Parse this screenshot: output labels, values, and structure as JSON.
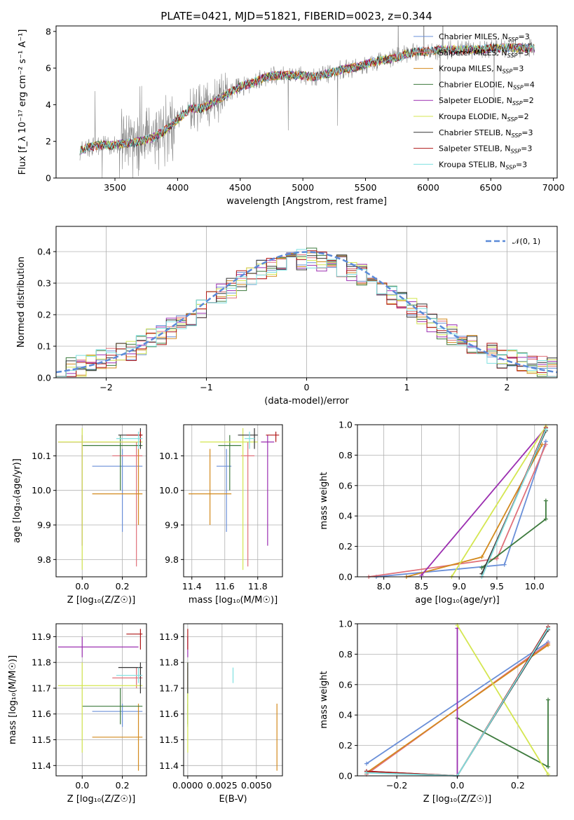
{
  "figure_title": "PLATE=0421, MJD=51821, FIBERID=0023, z=0.344",
  "colors": {
    "chabrier_miles": "#6a8fd8",
    "salpeter_miles": "#e0707a",
    "kroupa_miles": "#d38a1e",
    "chabrier_elodie": "#3d7a3d",
    "salpeter_elodie": "#9b2eb0",
    "kroupa_elodie": "#d4e650",
    "chabrier_stelib": "#333333",
    "salpeter_stelib": "#b01818",
    "kroupa_stelib": "#7fe0e0",
    "data_line": "#888888",
    "gaussian": "#5b8ad8"
  },
  "chart_data": [
    {
      "id": "spectrum",
      "type": "line",
      "xlabel": "wavelength [Angstrom, rest frame]",
      "ylabel": "Flux [f_λ 10⁻¹⁷ erg cm⁻² s⁻¹ A⁻¹]",
      "xlim": [
        3030,
        7030
      ],
      "ylim": [
        0,
        8.3
      ],
      "xticks": [
        "3500",
        "4000",
        "4500",
        "5000",
        "5500",
        "6000",
        "6500",
        "7000"
      ],
      "yticks": [
        "0",
        "2",
        "4",
        "6",
        "8"
      ],
      "legend_position": "upper-right",
      "legend": [
        {
          "lib": "Chabrier MILES",
          "n": "3"
        },
        {
          "lib": "Salpeter MILES",
          "n": "3"
        },
        {
          "lib": "Kroupa MILES",
          "n": "3"
        },
        {
          "lib": "Chabrier ELODIE",
          "n": "4"
        },
        {
          "lib": "Salpeter ELODIE",
          "n": "2"
        },
        {
          "lib": "Kroupa ELODIE",
          "n": "2"
        },
        {
          "lib": "Chabrier STELIB",
          "n": "3"
        },
        {
          "lib": "Salpeter STELIB",
          "n": "3"
        },
        {
          "lib": "Kroupa STELIB",
          "n": "3"
        }
      ],
      "continuum": {
        "x": [
          3220,
          3260,
          3300,
          3400,
          3500,
          3600,
          3700,
          3800,
          3900,
          4000,
          4100,
          4200,
          4300,
          4400,
          4500,
          4600,
          4700,
          4800,
          4900,
          5000,
          5100,
          5200,
          5300,
          5400,
          5500,
          5600,
          5700,
          5800,
          5900,
          6000,
          6100,
          6200,
          6300,
          6400,
          6500,
          6600,
          6700,
          6800,
          6850
        ],
        "y": [
          1.5,
          1.6,
          1.7,
          1.8,
          1.8,
          1.9,
          2.0,
          2.2,
          2.6,
          3.2,
          3.8,
          3.8,
          4.2,
          4.6,
          5.0,
          5.2,
          5.5,
          5.6,
          5.6,
          5.6,
          5.5,
          5.7,
          5.9,
          6.0,
          6.2,
          6.4,
          6.5,
          6.7,
          6.9,
          6.9,
          7.0,
          7.0,
          7.0,
          7.0,
          7.1,
          7.1,
          7.1,
          7.1,
          7.1
        ]
      }
    },
    {
      "id": "residuals",
      "type": "line",
      "xlabel": "(data-model)/error",
      "ylabel": "Normed distribution",
      "xlim": [
        -2.5,
        2.5
      ],
      "ylim": [
        0,
        0.48
      ],
      "xticks": [
        "−2",
        "−1",
        "0",
        "1",
        "2"
      ],
      "yticks": [
        "0.0",
        "0.1",
        "0.2",
        "0.3",
        "0.4"
      ],
      "legend": [
        "𝒩(0, 1)"
      ],
      "legend_position": "upper-right",
      "gaussian": {
        "mean": 0,
        "sigma": 1
      },
      "grid": true
    },
    {
      "id": "age_vs_Z",
      "type": "scatter",
      "xlabel": "Z [log₁₀(Z/Z☉)]",
      "ylabel": "age  [log₁₀(age/yr)]",
      "xlim": [
        -0.13,
        0.32
      ],
      "ylim": [
        9.75,
        10.19
      ],
      "xticks": [
        "0.0",
        "0.2"
      ],
      "yticks": [
        "9.8",
        "9.9",
        "10.0",
        "10.1"
      ],
      "grid": true
    },
    {
      "id": "age_vs_mass",
      "type": "scatter",
      "xlabel": "mass [log₁₀(M/M☉)]",
      "xlim": [
        11.35,
        11.95
      ],
      "ylim": [
        9.75,
        10.19
      ],
      "xticks": [
        "11.4",
        "11.6",
        "11.8"
      ],
      "yticks": [
        "9.8",
        "9.9",
        "10.0",
        "10.1"
      ],
      "grid": true
    },
    {
      "id": "mass_weight_vs_age",
      "type": "line",
      "xlabel": "age  [log₁₀(age/yr)]",
      "ylabel": "mass weight",
      "xlim": [
        7.65,
        10.3
      ],
      "ylim": [
        0,
        1.0
      ],
      "xticks": [
        "8.0",
        "8.5",
        "9.0",
        "9.5",
        "10.0"
      ],
      "yticks": [
        "0.0",
        "0.2",
        "0.4",
        "0.6",
        "0.8",
        "1.0"
      ],
      "grid": true
    },
    {
      "id": "mass_vs_Z",
      "type": "scatter",
      "xlabel": "Z [log₁₀(Z/Z☉)]",
      "ylabel": "mass [log₁₀(M/M☉)]",
      "xlim": [
        -0.13,
        0.32
      ],
      "ylim": [
        11.36,
        11.95
      ],
      "xticks": [
        "0.0",
        "0.2"
      ],
      "yticks": [
        "11.4",
        "11.5",
        "11.6",
        "11.7",
        "11.8",
        "11.9"
      ],
      "grid": true
    },
    {
      "id": "mass_vs_ebv",
      "type": "scatter",
      "xlabel": "E(B-V)",
      "xlim": [
        -0.0003,
        0.0069
      ],
      "ylim": [
        11.36,
        11.95
      ],
      "xticks": [
        "0.0000",
        "0.0025",
        "0.0050"
      ],
      "yticks": [
        "11.4",
        "11.5",
        "11.6",
        "11.7",
        "11.8",
        "11.9"
      ],
      "grid": true
    },
    {
      "id": "mass_weight_vs_Z",
      "type": "line",
      "xlabel": "Z [log₁₀(Z/Z☉)]",
      "ylabel": "mass weight",
      "xlim": [
        -0.33,
        0.33
      ],
      "ylim": [
        0,
        1.0
      ],
      "xticks": [
        "−0.2",
        "0.0",
        "0.2"
      ],
      "yticks": [
        "0.0",
        "0.2",
        "0.4",
        "0.6",
        "0.8",
        "1.0"
      ],
      "grid": true
    }
  ],
  "fits": [
    {
      "key": "chabrier_miles",
      "Z": 0.2,
      "Z_lo": 0.05,
      "Z_hi": 0.3,
      "age": 10.07,
      "age_lo": 9.88,
      "age_hi": 10.12,
      "mass": 11.61,
      "mass_lo": 11.55,
      "mass_hi": 11.64,
      "ebv": 0.0,
      "age_w": [
        [
          7.9,
          0.0
        ],
        [
          9.6,
          0.08
        ],
        [
          10.15,
          0.89
        ]
      ],
      "Z_w": [
        [
          -0.3,
          0.08
        ],
        [
          0.3,
          0.88
        ]
      ]
    },
    {
      "key": "salpeter_miles",
      "Z": 0.27,
      "Z_lo": 0.15,
      "Z_hi": 0.3,
      "age": 10.1,
      "age_lo": 9.78,
      "age_hi": 10.14,
      "mass": 11.74,
      "mass_lo": 11.7,
      "mass_hi": 11.78,
      "ebv": 0.0,
      "age_w": [
        [
          7.8,
          0.0
        ],
        [
          9.5,
          0.12
        ],
        [
          10.15,
          0.87
        ]
      ],
      "Z_w": [
        [
          -0.3,
          0.01
        ],
        [
          0.3,
          0.87
        ]
      ]
    },
    {
      "key": "kroupa_miles",
      "Z": 0.28,
      "Z_lo": 0.05,
      "Z_hi": 0.3,
      "age": 9.99,
      "age_lo": 9.9,
      "age_hi": 10.12,
      "mass": 11.51,
      "mass_lo": 11.38,
      "mass_hi": 11.64,
      "ebv": 0.0065,
      "age_w": [
        [
          8.3,
          0.0
        ],
        [
          9.3,
          0.13
        ],
        [
          10.1,
          0.87
        ]
      ],
      "Z_w": [
        [
          -0.3,
          0.02
        ],
        [
          0.3,
          0.86
        ]
      ]
    },
    {
      "key": "chabrier_elodie",
      "Z": 0.19,
      "Z_lo": 0.0,
      "Z_hi": 0.3,
      "age": 10.13,
      "age_lo": 10.0,
      "age_hi": 10.16,
      "mass": 11.63,
      "mass_lo": 11.56,
      "mass_hi": 11.7,
      "ebv": 0.0,
      "age_w": [
        [
          9.3,
          0.06
        ],
        [
          10.15,
          0.38
        ],
        [
          10.15,
          0.5
        ]
      ],
      "Z_w": [
        [
          0.0,
          0.38
        ],
        [
          0.3,
          0.06
        ],
        [
          0.3,
          0.5
        ]
      ]
    },
    {
      "key": "salpeter_elodie",
      "Z": 0.0,
      "Z_lo": -0.12,
      "Z_hi": 0.28,
      "age": 10.14,
      "age_lo": 9.84,
      "age_hi": 10.16,
      "mass": 11.86,
      "mass_lo": 11.82,
      "mass_hi": 11.9,
      "ebv": 0.0,
      "age_w": [
        [
          8.5,
          0.01
        ],
        [
          10.15,
          0.98
        ]
      ],
      "Z_w": [
        [
          0.0,
          0.0
        ],
        [
          0.0,
          0.97
        ]
      ]
    },
    {
      "key": "kroupa_elodie",
      "Z": 0.0,
      "Z_lo": -0.12,
      "Z_hi": 0.3,
      "age": 10.14,
      "age_lo": 9.77,
      "age_hi": 10.18,
      "mass": 11.71,
      "mass_lo": 11.45,
      "mass_hi": 11.8,
      "ebv": 0.0,
      "age_w": [
        [
          8.9,
          0.0
        ],
        [
          10.15,
          0.99
        ]
      ],
      "Z_w": [
        [
          0.0,
          0.99
        ],
        [
          0.3,
          0.01
        ]
      ]
    },
    {
      "key": "chabrier_stelib",
      "Z": 0.29,
      "Z_lo": 0.18,
      "Z_hi": 0.3,
      "age": 10.16,
      "age_lo": 10.12,
      "age_hi": 10.18,
      "mass": 11.78,
      "mass_lo": 11.68,
      "mass_hi": 11.8,
      "ebv": 0.0,
      "age_w": [
        [
          9.3,
          0.02
        ],
        [
          10.15,
          0.96
        ]
      ],
      "Z_w": [
        [
          -0.3,
          0.03
        ],
        [
          0.0,
          0.0
        ],
        [
          0.3,
          0.96
        ]
      ]
    },
    {
      "key": "salpeter_stelib",
      "Z": 0.29,
      "Z_lo": 0.22,
      "Z_hi": 0.3,
      "age": 10.16,
      "age_lo": 10.14,
      "age_hi": 10.17,
      "mass": 11.91,
      "mass_lo": 11.85,
      "mass_hi": 11.93,
      "ebv": 0.0,
      "age_w": [
        [
          9.3,
          0.0
        ],
        [
          10.15,
          0.98
        ]
      ],
      "Z_w": [
        [
          -0.3,
          0.03
        ],
        [
          0.0,
          0.0
        ],
        [
          0.3,
          0.98
        ]
      ]
    },
    {
      "key": "kroupa_stelib",
      "Z": 0.28,
      "Z_lo": 0.17,
      "Z_hi": 0.3,
      "age": 10.15,
      "age_lo": 10.12,
      "age_hi": 10.17,
      "mass": 11.75,
      "mass_lo": 11.72,
      "mass_hi": 11.78,
      "ebv": 0.0033,
      "age_w": [
        [
          9.3,
          0.0
        ],
        [
          10.15,
          0.97
        ]
      ],
      "Z_w": [
        [
          -0.3,
          0.02
        ],
        [
          0.0,
          0.0
        ],
        [
          0.3,
          0.97
        ]
      ]
    }
  ]
}
